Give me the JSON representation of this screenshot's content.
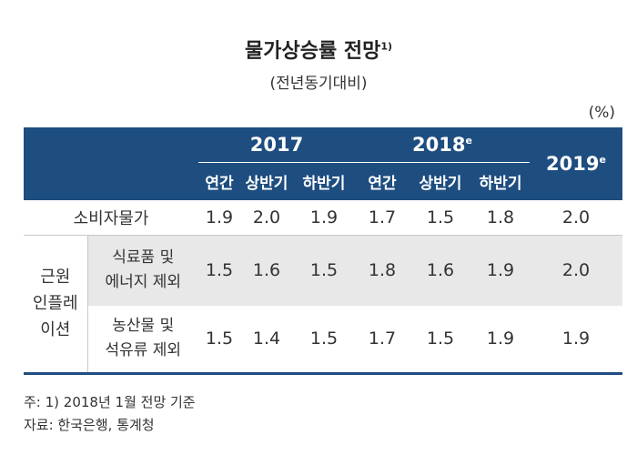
{
  "title": "물가상승률 전망",
  "title_note": "1)",
  "subtitle": "(전년동기대비)",
  "unit": "(%)",
  "header": {
    "y2017": "2017",
    "y2018": "2018",
    "y2018_mark": "e",
    "y2019": "2019",
    "y2019_mark": "e",
    "sub": [
      "연간",
      "상반기",
      "하반기",
      "연간",
      "상반기",
      "하반기"
    ]
  },
  "rows": {
    "cpi": {
      "label": "소비자물가",
      "values": [
        "1.9",
        "2.0",
        "1.9",
        "1.7",
        "1.5",
        "1.8",
        "2.0"
      ]
    },
    "core": {
      "label_lines": [
        "근원",
        "인플레",
        "이션"
      ],
      "ex_food_energy": {
        "label_lines": [
          "식료품 및",
          "에너지 제외"
        ],
        "values": [
          "1.5",
          "1.6",
          "1.5",
          "1.8",
          "1.6",
          "1.9",
          "2.0"
        ]
      },
      "ex_agri_oil": {
        "label_lines": [
          "농산물 및",
          "석유류 제외"
        ],
        "values": [
          "1.5",
          "1.4",
          "1.5",
          "1.7",
          "1.5",
          "1.9",
          "1.9"
        ]
      }
    }
  },
  "notes": [
    "주: 1) 2018년 1월 전망 기준",
    "자료: 한국은행, 통계청"
  ],
  "colors": {
    "header_bg": "#1e4d80",
    "shade_row": "#e8e8e8"
  }
}
